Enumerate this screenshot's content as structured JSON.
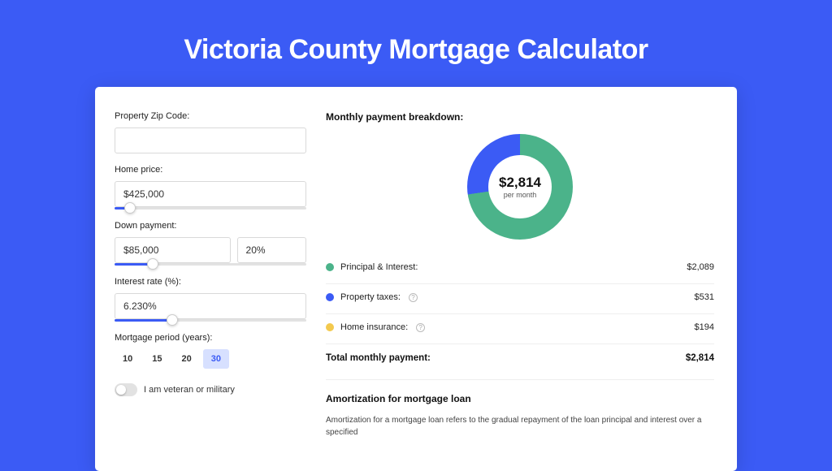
{
  "title": "Victoria County Mortgage Calculator",
  "colors": {
    "page_bg": "#3b5bf5",
    "card_bg": "#ffffff",
    "accent": "#3b5bf5",
    "principal": "#4bb38a",
    "taxes": "#3b5bf5",
    "insurance": "#f3c94e",
    "track": "#e2e2e2",
    "border": "#d9d9d9"
  },
  "form": {
    "zip_label": "Property Zip Code:",
    "zip_value": "",
    "home_price_label": "Home price:",
    "home_price_value": "$425,000",
    "home_price_slider_pct": 8,
    "down_payment_label": "Down payment:",
    "down_payment_value": "$85,000",
    "down_payment_pct": "20%",
    "down_payment_slider_pct": 20,
    "interest_label": "Interest rate (%):",
    "interest_value": "6.230%",
    "interest_slider_pct": 30,
    "period_label": "Mortgage period (years):",
    "period_options": [
      "10",
      "15",
      "20",
      "30"
    ],
    "period_selected": "30",
    "veteran_label": "I am veteran or military",
    "veteran_on": false
  },
  "breakdown": {
    "title": "Monthly payment breakdown:",
    "center_value": "$2,814",
    "center_sub": "per month",
    "donut": {
      "slices": [
        {
          "key": "insurance",
          "pct": 7,
          "color": "#f3c94e"
        },
        {
          "key": "principal",
          "pct": 74,
          "color": "#4bb38a"
        },
        {
          "key": "taxes",
          "pct": 19,
          "color": "#3b5bf5"
        }
      ],
      "start_deg": -30
    },
    "rows": [
      {
        "label": "Principal & Interest:",
        "amount": "$2,089",
        "color": "#4bb38a",
        "info": false
      },
      {
        "label": "Property taxes:",
        "amount": "$531",
        "color": "#3b5bf5",
        "info": true
      },
      {
        "label": "Home insurance:",
        "amount": "$194",
        "color": "#f3c94e",
        "info": true
      }
    ],
    "total_label": "Total monthly payment:",
    "total_amount": "$2,814"
  },
  "amortization": {
    "title": "Amortization for mortgage loan",
    "text": "Amortization for a mortgage loan refers to the gradual repayment of the loan principal and interest over a specified"
  }
}
